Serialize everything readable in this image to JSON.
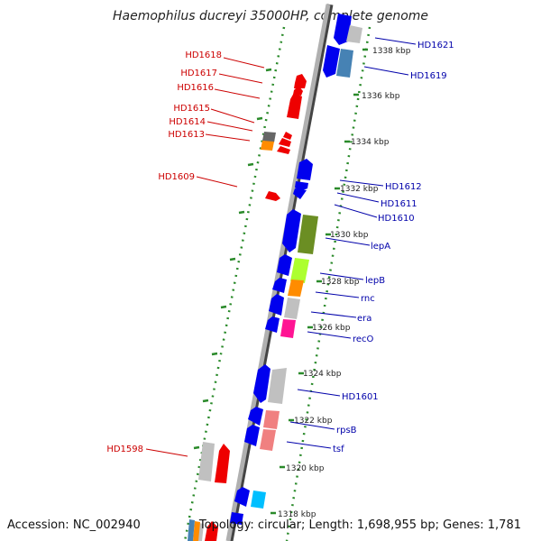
{
  "title": "Haemophilus ducreyi 35000HP, complete genome",
  "footer": {
    "accession": "Accession: NC_002940",
    "summary": "Topology: circular; Length: 1,698,955 bp; Genes: 1,781"
  },
  "ruler_labels": [
    "1338 kbp",
    "1336 kbp",
    "1334 kbp",
    "1332 kbp",
    "1330 kbp",
    "1328 kbp",
    "1326 kbp",
    "1324 kbp",
    "1322 kbp",
    "1320 kbp",
    "1318 kbp"
  ],
  "colors": {
    "forward_label": "#cc0000",
    "reverse_label": "#0000aa",
    "backbone": "#999999",
    "dots": "#2a8a2a",
    "red": "#ff0000",
    "blue": "#0000ee",
    "gray": "#bbbbbb",
    "olive": "#6b8e23",
    "lime": "#adff2f",
    "orange": "#ff8c00",
    "pink": "#ff1493",
    "salmon": "#f08080",
    "steel": "#4682b4",
    "sky": "#00bfff",
    "dark": "#666666"
  },
  "left_labels": [
    "HD1618",
    "HD1617",
    "HD1616",
    "HD1615",
    "HD1614",
    "HD1613",
    "HD1609",
    "HD1598"
  ],
  "right_labels": [
    "HD1621",
    "HD1619",
    "HD1612",
    "HD1611",
    "HD1610",
    "lepA",
    "lepB",
    "rnc",
    "era",
    "recO",
    "HD1601",
    "rpsB",
    "tsf"
  ]
}
